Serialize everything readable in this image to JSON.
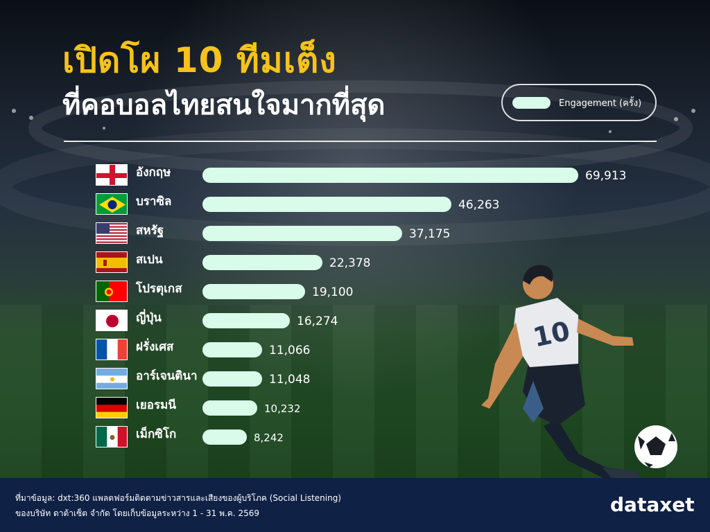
{
  "header": {
    "title": "เปิดโผ 10 ทีมเต็ง",
    "subtitle": "ที่คอบอลไทยสนใจมากที่สุด"
  },
  "legend": {
    "label": "Engagement (ครั้ง)",
    "color": "#d8fbea"
  },
  "colors": {
    "title": "#f6c21c",
    "bar": "#d8fbea",
    "footer": "#0f2145"
  },
  "chart_data": {
    "type": "bar",
    "orientation": "horizontal",
    "categories": [
      "อังกฤษ",
      "บราซิล",
      "สหรัฐ",
      "สเปน",
      "โปรตุเกส",
      "ญี่ปุ่น",
      "ฝรั่งเศส",
      "อาร์เจนตินา",
      "เยอรมนี",
      "เม็กซิโก"
    ],
    "flags": [
      "england-flag",
      "brazil-flag",
      "usa-flag",
      "spain-flag",
      "portugal-flag",
      "japan-flag",
      "france-flag",
      "argentina-flag",
      "germany-flag",
      "mexico-flag"
    ],
    "series": [
      {
        "name": "Engagement (ครั้ง)",
        "values": [
          69913,
          46263,
          37175,
          22378,
          19100,
          16274,
          11066,
          11048,
          10232,
          8242
        ],
        "labels": [
          "69,913",
          "46,263",
          "37,175",
          "22,378",
          "19,100",
          "16,274",
          "11,066",
          "11,048",
          "10,232",
          "8,242"
        ]
      }
    ],
    "title": "เปิดโผ 10 ทีมเต็ง",
    "subtitle": "ที่คอบอลไทยสนใจมากที่สุด",
    "legend": "top-right",
    "grid": false
  },
  "footer": {
    "source_line1": "ที่มาข้อมูล: dxt:360 แพลตฟอร์มติดตามข่าวสารและเสียงของผู้บริโภค (Social Listening)",
    "source_line2": "ของบริษัท ดาต้าเซ็ต จำกัด โดยเก็บข้อมูลระหว่าง 1 - 31 พ.ค. 2569",
    "brand": "dataxet"
  }
}
